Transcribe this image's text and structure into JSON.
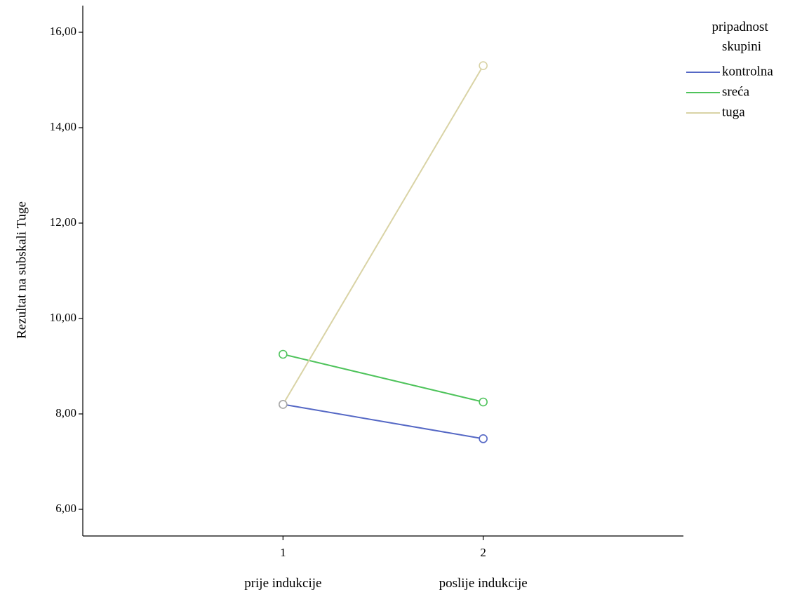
{
  "chart_data": {
    "type": "line",
    "ylabel": "Rezultat na subskali Tuge",
    "xlabel": "",
    "x": [
      1,
      2
    ],
    "x_tick_labels": [
      "1",
      "2"
    ],
    "x_category_labels": [
      "prije indukcije",
      "poslije indukcije"
    ],
    "xlim": [
      0,
      3
    ],
    "ylim": [
      5.5,
      16.55
    ],
    "y_ticks": [
      6,
      8,
      10,
      12,
      14,
      16
    ],
    "y_tick_labels": [
      "6,00",
      "8,00",
      "10,00",
      "12,00",
      "14,00",
      "16,00"
    ],
    "grid": false,
    "legend": {
      "title_lines": [
        "pripadnost",
        "skupini"
      ],
      "placement": "top-right"
    },
    "series": [
      {
        "name": "kontrolna",
        "values": [
          8.2,
          7.48
        ],
        "color": "#5568c5"
      },
      {
        "name": "sreća",
        "values": [
          9.25,
          8.25
        ],
        "color": "#4ec35b"
      },
      {
        "name": "tuga",
        "values": [
          8.2,
          15.3
        ],
        "color": "#d9d3a5"
      }
    ],
    "marker_overlap_color": "#a9a9a9"
  }
}
